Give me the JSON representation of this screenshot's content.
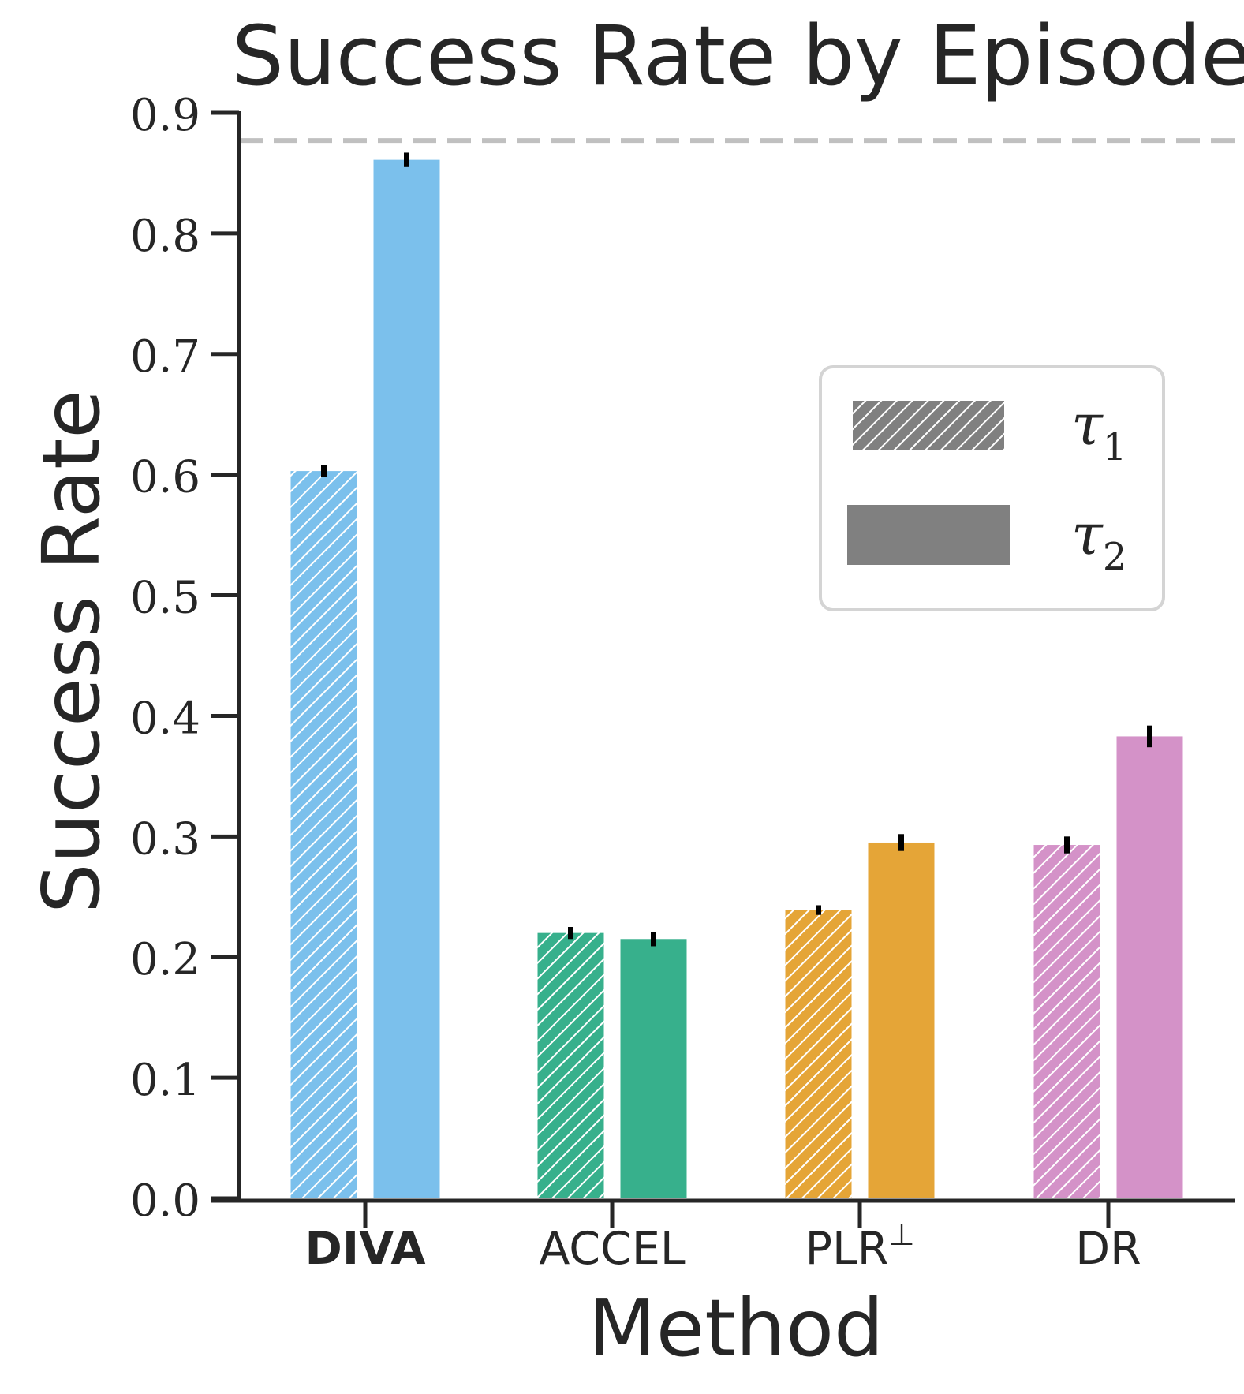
{
  "chart_data": {
    "type": "bar",
    "title": "Success Rate by Episode",
    "xlabel": "Method",
    "ylabel": "Success Rate",
    "ylim": [
      0,
      0.9
    ],
    "yticks": [
      "0.0",
      "0.1",
      "0.2",
      "0.3",
      "0.4",
      "0.5",
      "0.6",
      "0.7",
      "0.8",
      "0.9"
    ],
    "categories": [
      {
        "label": "DIVA",
        "bold": true,
        "sup": ""
      },
      {
        "label": "ACCEL",
        "bold": false,
        "sup": ""
      },
      {
        "label": "PLR",
        "bold": false,
        "sup": "⊥"
      },
      {
        "label": "DR",
        "bold": false,
        "sup": ""
      }
    ],
    "colors": [
      "#7bc0ec",
      "#37b08c",
      "#e5a537",
      "#d492c8"
    ],
    "series": [
      {
        "name": "τ1",
        "sym": "τ",
        "sub": "1",
        "hatched": true,
        "values": [
          0.603,
          0.22,
          0.239,
          0.293
        ],
        "err": [
          0.005,
          0.005,
          0.004,
          0.007
        ]
      },
      {
        "name": "τ2",
        "sym": "τ",
        "sub": "2",
        "hatched": false,
        "values": [
          0.861,
          0.215,
          0.295,
          0.383
        ],
        "err": [
          0.006,
          0.006,
          0.007,
          0.009
        ]
      }
    ],
    "reference_line": {
      "value": 0.877,
      "style": "dashed",
      "color": "#c0c0c0"
    },
    "legend": {
      "placement": "upper-right",
      "swatch_color": "#808080"
    },
    "grid": false
  }
}
